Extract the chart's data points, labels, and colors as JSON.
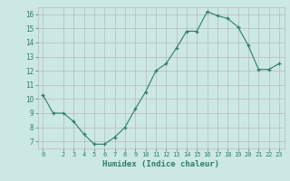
{
  "x": [
    0,
    1,
    2,
    3,
    4,
    5,
    6,
    7,
    8,
    9,
    10,
    11,
    12,
    13,
    14,
    15,
    16,
    17,
    18,
    19,
    20,
    21,
    22,
    23
  ],
  "y": [
    10.3,
    9.0,
    9.0,
    8.4,
    7.5,
    6.8,
    6.8,
    7.3,
    8.0,
    9.3,
    10.5,
    12.0,
    12.5,
    13.6,
    14.8,
    14.8,
    16.2,
    15.9,
    15.7,
    15.1,
    13.8,
    12.1,
    12.1,
    12.5
  ],
  "xlabel": "Humidex (Indice chaleur)",
  "xlim": [
    -0.5,
    23.5
  ],
  "ylim": [
    6.5,
    16.5
  ],
  "yticks": [
    7,
    8,
    9,
    10,
    11,
    12,
    13,
    14,
    15,
    16
  ],
  "xticks": [
    0,
    2,
    3,
    4,
    5,
    6,
    7,
    8,
    9,
    10,
    11,
    12,
    13,
    14,
    15,
    16,
    17,
    18,
    19,
    20,
    21,
    22,
    23
  ],
  "line_color": "#2e7d6e",
  "marker": "+",
  "bg_color": "#cce8e4",
  "grid_color": "#b8b8b8",
  "label_color": "#2e7d6e",
  "tick_color": "#2e7d6e"
}
